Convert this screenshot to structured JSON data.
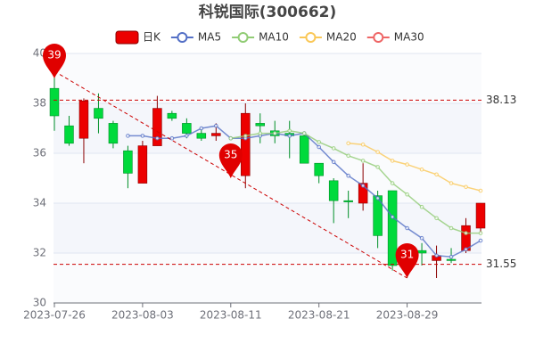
{
  "chart_data": {
    "type": "candlestick",
    "title": "科锐国际(300662)",
    "categories": [
      "2023-07-26",
      null,
      null,
      null,
      null,
      null,
      "2023-08-03",
      null,
      null,
      null,
      null,
      null,
      "2023-08-11",
      null,
      null,
      null,
      null,
      null,
      "2023-08-21",
      null,
      null,
      null,
      null,
      null,
      "2023-08-29",
      null,
      null,
      null,
      null,
      null
    ],
    "ylim": [
      30,
      40
    ],
    "yticks": [
      30,
      32,
      34,
      36,
      38,
      40
    ],
    "series": [
      {
        "name": "日K",
        "color": "#ec0000",
        "color_down": "#00da3c",
        "open": [
          38.6,
          37.1,
          36.6,
          37.8,
          37.2,
          36.1,
          34.8,
          36.3,
          37.6,
          37.2,
          36.8,
          36.7,
          35.9,
          35.1,
          37.2,
          36.9,
          36.8,
          36.7,
          35.6,
          34.9,
          34.1,
          34.0,
          34.3,
          34.5,
          32.0,
          32.1,
          31.7,
          31.75,
          32.1,
          33.0
        ],
        "close": [
          37.5,
          36.4,
          38.1,
          37.4,
          36.4,
          35.2,
          36.3,
          37.8,
          37.4,
          36.8,
          36.6,
          36.8,
          35.4,
          37.6,
          37.1,
          36.7,
          36.7,
          35.6,
          35.1,
          34.1,
          34.05,
          34.8,
          32.7,
          31.5,
          31.55,
          32.0,
          31.9,
          31.7,
          33.1,
          34.0
        ],
        "low": [
          36.9,
          36.3,
          35.6,
          36.8,
          36.2,
          34.6,
          34.8,
          36.3,
          37.3,
          36.6,
          36.5,
          36.5,
          35.4,
          34.6,
          36.4,
          36.4,
          35.8,
          35.6,
          34.8,
          33.2,
          33.4,
          33.7,
          32.2,
          31.3,
          31.0,
          31.5,
          31.0,
          31.6,
          32.0,
          32.8
        ],
        "high": [
          39.3,
          37.5,
          38.2,
          38.4,
          37.3,
          36.3,
          36.5,
          38.3,
          37.7,
          37.4,
          37.0,
          37.2,
          36.3,
          38.0,
          37.6,
          37.3,
          37.3,
          36.8,
          35.6,
          35.0,
          34.5,
          35.6,
          34.5,
          34.5,
          32.1,
          32.4,
          32.3,
          32.2,
          33.4,
          34.0
        ]
      },
      {
        "name": "MA5",
        "color": "#5470c6",
        "values": [
          null,
          null,
          null,
          null,
          null,
          36.7,
          36.7,
          36.6,
          36.6,
          36.7,
          37.0,
          37.1,
          36.6,
          36.6,
          36.7,
          36.8,
          36.7,
          36.8,
          36.25,
          35.65,
          35.1,
          34.7,
          34.2,
          33.45,
          33.0,
          32.6,
          31.9,
          31.85,
          32.15,
          32.5
        ]
      },
      {
        "name": "MA10",
        "color": "#91cc75",
        "values": [
          null,
          null,
          null,
          null,
          null,
          null,
          null,
          null,
          null,
          null,
          null,
          null,
          36.6,
          36.7,
          36.8,
          36.8,
          36.9,
          36.8,
          36.45,
          36.2,
          35.9,
          35.7,
          35.45,
          34.8,
          34.35,
          33.85,
          33.4,
          33.0,
          32.8,
          32.8
        ]
      },
      {
        "name": "MA20",
        "color": "#fac858",
        "values": [
          null,
          null,
          null,
          null,
          null,
          null,
          null,
          null,
          null,
          null,
          null,
          null,
          null,
          null,
          null,
          null,
          null,
          null,
          null,
          null,
          36.4,
          36.35,
          36.05,
          35.7,
          35.55,
          35.35,
          35.15,
          34.8,
          34.65,
          34.5
        ]
      },
      {
        "name": "MA30",
        "color": "#ee6666",
        "values": [
          null,
          null,
          null,
          null,
          null,
          null,
          null,
          null,
          null,
          null,
          null,
          null,
          null,
          null,
          null,
          null,
          null,
          null,
          null,
          null,
          null,
          null,
          null,
          null,
          null,
          null,
          null,
          null,
          null,
          null
        ]
      }
    ],
    "mark_points": [
      {
        "value": 39,
        "index": 0
      },
      {
        "value": 35,
        "index": 12
      },
      {
        "value": 31,
        "index": 24
      }
    ],
    "mark_lines": [
      38.13,
      31.55
    ]
  }
}
